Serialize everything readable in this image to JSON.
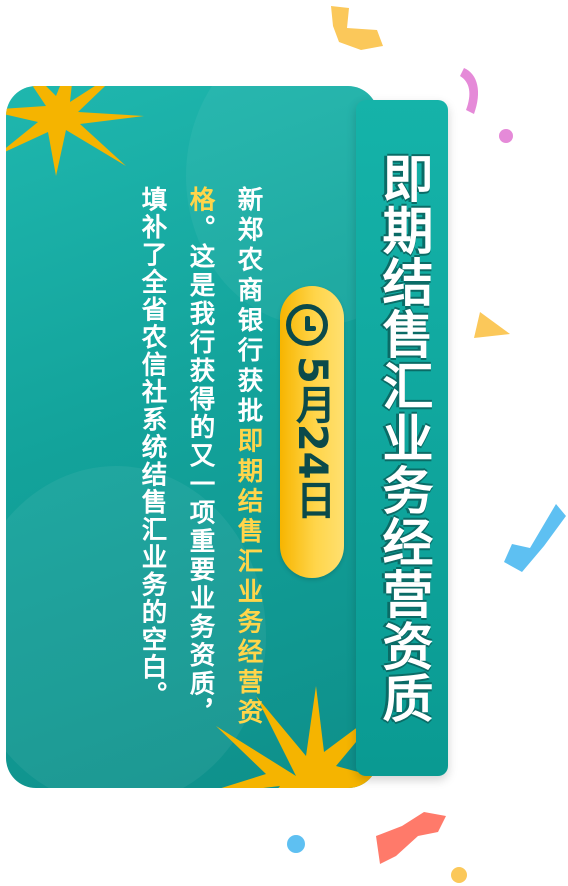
{
  "title": "即期结售汇业务经营资质",
  "date": "5月24日",
  "body": {
    "intro": "新郑农商银行获批",
    "highlight": "即期结售汇业务经营资格",
    "rest": "。这是我行获得的又一项重要业务资质，填补了全省农信社系统结售汇业务的空白。"
  },
  "icons": {
    "clock": "clock-icon",
    "decoration": [
      "confetti",
      "yellow-burst"
    ]
  },
  "colors": {
    "teal": "#13a39b",
    "yellow": "#ffd54a",
    "dark": "#0b4a4a",
    "confetti_yellow": "#fbc85a",
    "confetti_pink": "#e58ad8",
    "confetti_blue": "#5ec0f2",
    "confetti_red": "#ff7a6a"
  }
}
